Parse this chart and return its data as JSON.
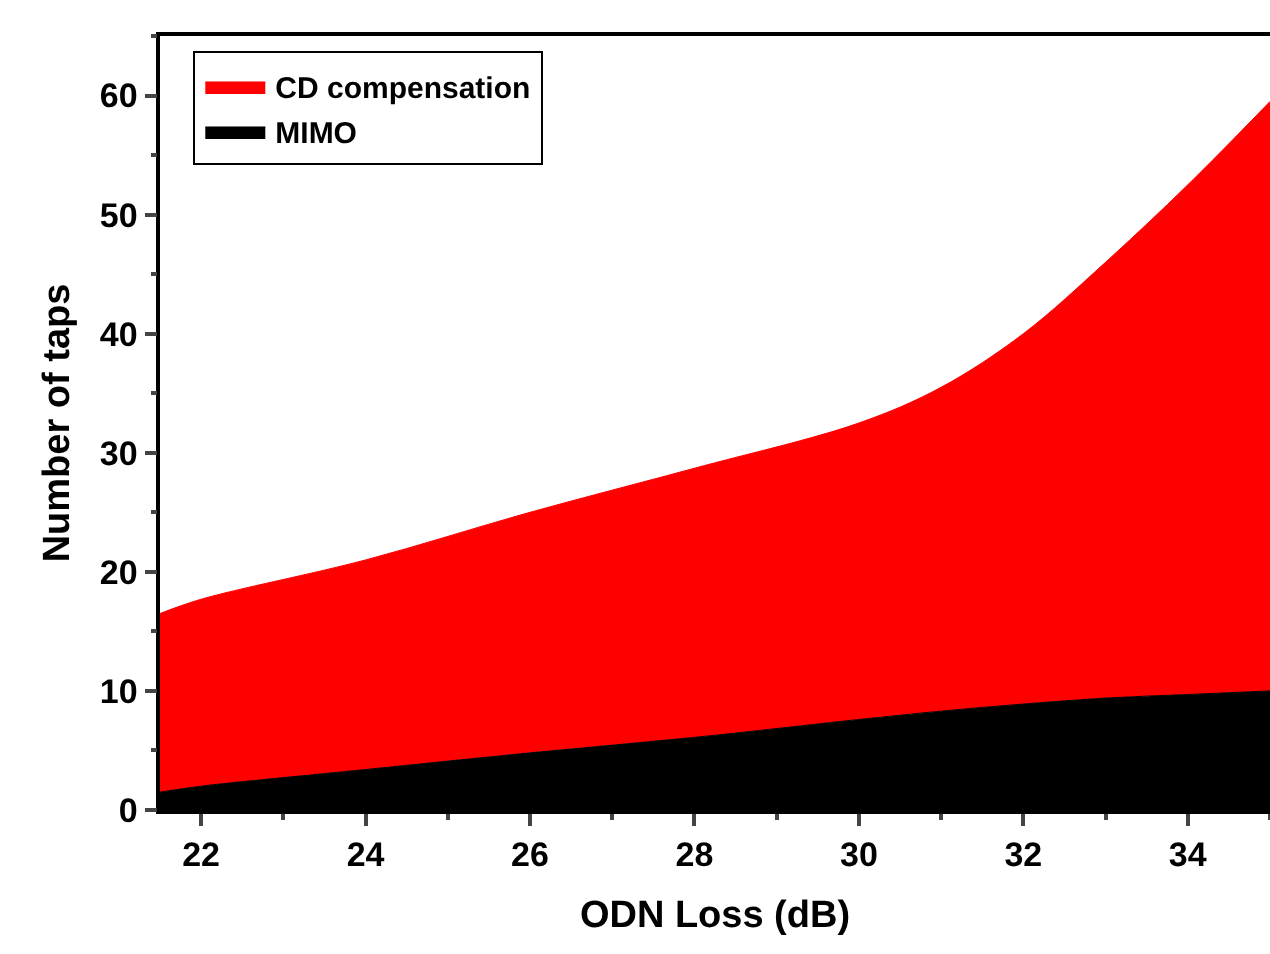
{
  "chart_data": {
    "type": "area",
    "stacked": true,
    "xlabel": "ODN Loss (dB)",
    "ylabel": "Number of taps",
    "x": [
      21.5,
      22,
      24,
      26,
      28,
      30,
      31,
      32,
      33,
      34,
      35
    ],
    "series": [
      {
        "name": "MIMO",
        "color": "#000000",
        "values": [
          1.5,
          2,
          3.4,
          4.8,
          6.1,
          7.6,
          8.3,
          8.9,
          9.4,
          9.7,
          10
        ]
      },
      {
        "name": "CD compensation",
        "color": "#ff0000",
        "values": [
          15,
          15.7,
          17.6,
          20.2,
          22.6,
          24.9,
          27.2,
          31.1,
          36.6,
          42.8,
          49.5
        ]
      }
    ],
    "xlim": [
      21.5,
      35
    ],
    "xticks": [
      22,
      24,
      26,
      28,
      30,
      32,
      34
    ],
    "ylim": [
      0,
      65
    ],
    "yticks": [
      0,
      10,
      20,
      30,
      40,
      50,
      60
    ],
    "grid": false,
    "legend": "top left"
  }
}
